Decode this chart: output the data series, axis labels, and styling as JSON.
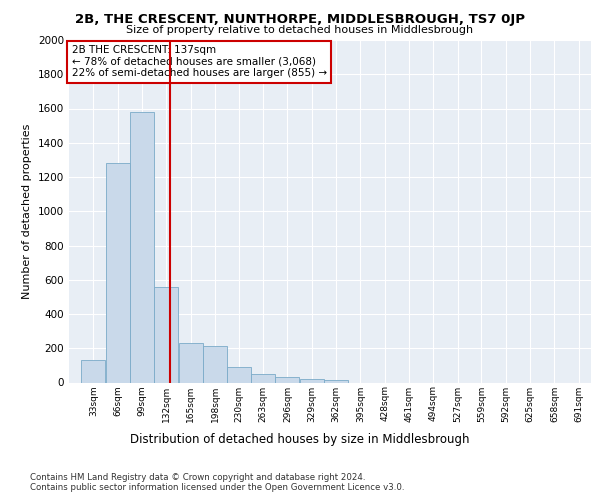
{
  "title": "2B, THE CRESCENT, NUNTHORPE, MIDDLESBROUGH, TS7 0JP",
  "subtitle": "Size of property relative to detached houses in Middlesbrough",
  "xlabel": "Distribution of detached houses by size in Middlesbrough",
  "ylabel": "Number of detached properties",
  "footer_line1": "Contains HM Land Registry data © Crown copyright and database right 2024.",
  "footer_line2": "Contains public sector information licensed under the Open Government Licence v3.0.",
  "annotation_line1": "2B THE CRESCENT: 137sqm",
  "annotation_line2": "← 78% of detached houses are smaller (3,068)",
  "annotation_line3": "22% of semi-detached houses are larger (855) →",
  "bar_color": "#c9d9ea",
  "bar_edge_color": "#7aaac8",
  "vline_color": "#cc0000",
  "vline_x": 137,
  "annotation_box_color": "#cc0000",
  "plot_bg_color": "#e8eef5",
  "categories": [
    33,
    66,
    99,
    132,
    165,
    198,
    230,
    263,
    296,
    329,
    362,
    395,
    428,
    461,
    494,
    527,
    559,
    592,
    625,
    658,
    691
  ],
  "bin_width": 33,
  "values": [
    130,
    1280,
    1580,
    560,
    230,
    215,
    90,
    50,
    30,
    20,
    15,
    0,
    0,
    0,
    0,
    0,
    0,
    0,
    0,
    0,
    0
  ],
  "ylim": [
    0,
    2000
  ],
  "yticks": [
    0,
    200,
    400,
    600,
    800,
    1000,
    1200,
    1400,
    1600,
    1800,
    2000
  ]
}
